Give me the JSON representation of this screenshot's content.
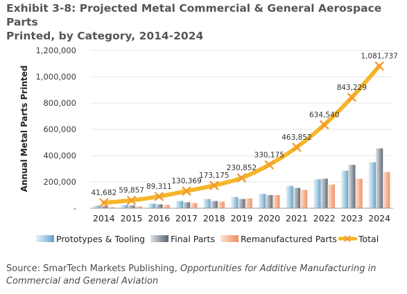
{
  "title_lines": [
    "Exhibit 3-8: Projected Metal Commercial & General Aerospace Parts",
    "Printed, by Category, 2014-2024"
  ],
  "source": {
    "prefix": "Source: SmarTech Markets Publishing, ",
    "italic": "Opportunities for Additive Manufacturing in Commercial and General Aviation"
  },
  "colors": {
    "prototypes": "#a9cde2",
    "final": "#9aa3ac",
    "reman": "#f6b79a",
    "total": "#f5b62a",
    "marker": "#f39a30"
  },
  "chart_data": {
    "type": "bar",
    "categories": [
      "2014",
      "2015",
      "2016",
      "2017",
      "2018",
      "2019",
      "2020",
      "2021",
      "2022",
      "2023",
      "2024"
    ],
    "series": [
      {
        "name": "Prototypes & Tooling",
        "type": "bar",
        "values": [
          20000,
          25000,
          35000,
          55000,
          70000,
          85000,
          110000,
          170000,
          220000,
          285000,
          350000
        ]
      },
      {
        "name": "Final Parts",
        "type": "bar",
        "values": [
          18000,
          22000,
          30000,
          45000,
          55000,
          70000,
          100000,
          155000,
          225000,
          330000,
          455000
        ]
      },
      {
        "name": "Remanufactured Parts",
        "type": "bar",
        "values": [
          8000,
          13000,
          25000,
          40000,
          50000,
          75000,
          100000,
          140000,
          180000,
          225000,
          275000
        ]
      },
      {
        "name": "Total",
        "type": "line",
        "values": [
          41682,
          59857,
          89311,
          130369,
          173175,
          230852,
          330175,
          463852,
          634540,
          843229,
          1081737
        ]
      }
    ],
    "data_labels": [
      "41,682",
      "59,857",
      "89,311",
      "130,369",
      "173,175",
      "230,852",
      "330,175",
      "463,852",
      "634,540",
      "843,229",
      "1,081,737"
    ],
    "ylabel": "Annual Metal Parts Printed",
    "ylim": [
      0,
      1200000
    ],
    "yticks": [
      0,
      200000,
      400000,
      600000,
      800000,
      1000000,
      1200000
    ],
    "ytick_labels": [
      "-",
      "200,000",
      "400,000",
      "600,000",
      "800,000",
      "1,000,000",
      "1,200,000"
    ],
    "grid": true,
    "legend_position": "bottom"
  }
}
